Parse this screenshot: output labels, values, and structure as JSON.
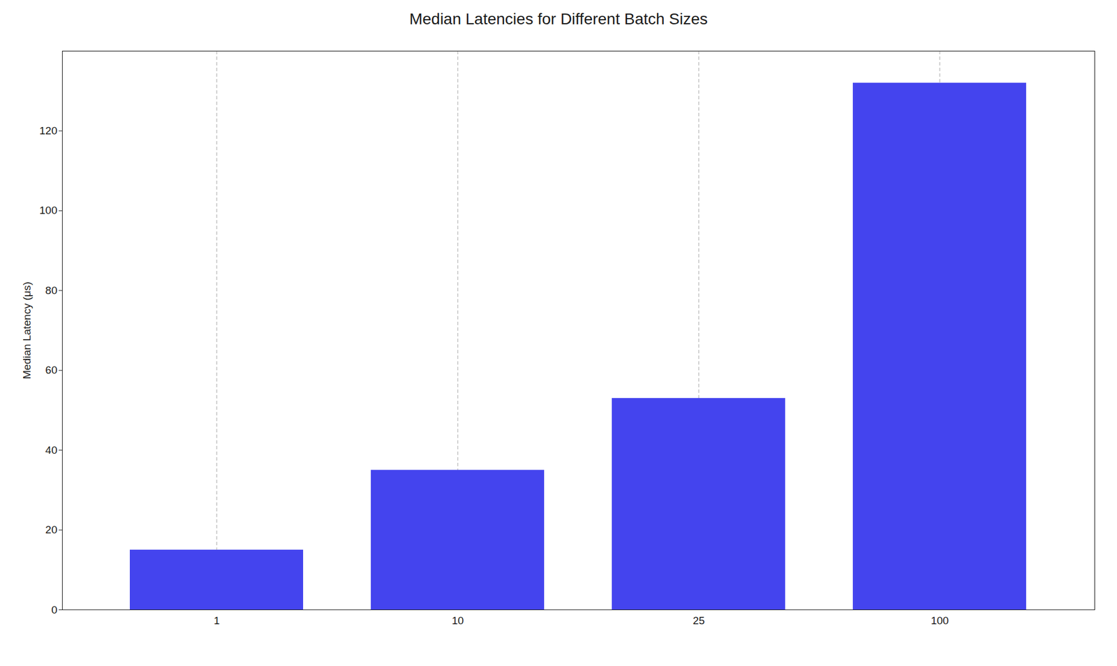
{
  "chart_data": {
    "type": "bar",
    "title": "Median Latencies for Different Batch Sizes",
    "ylabel": "Median Latency (μs)",
    "categories": [
      "1",
      "10",
      "25",
      "100"
    ],
    "values": [
      15,
      35,
      53,
      132
    ],
    "color": "#4444ee",
    "ylim": [
      0,
      140
    ],
    "yticks": [
      0,
      20,
      40,
      60,
      80,
      100,
      120
    ],
    "grid": "x"
  }
}
